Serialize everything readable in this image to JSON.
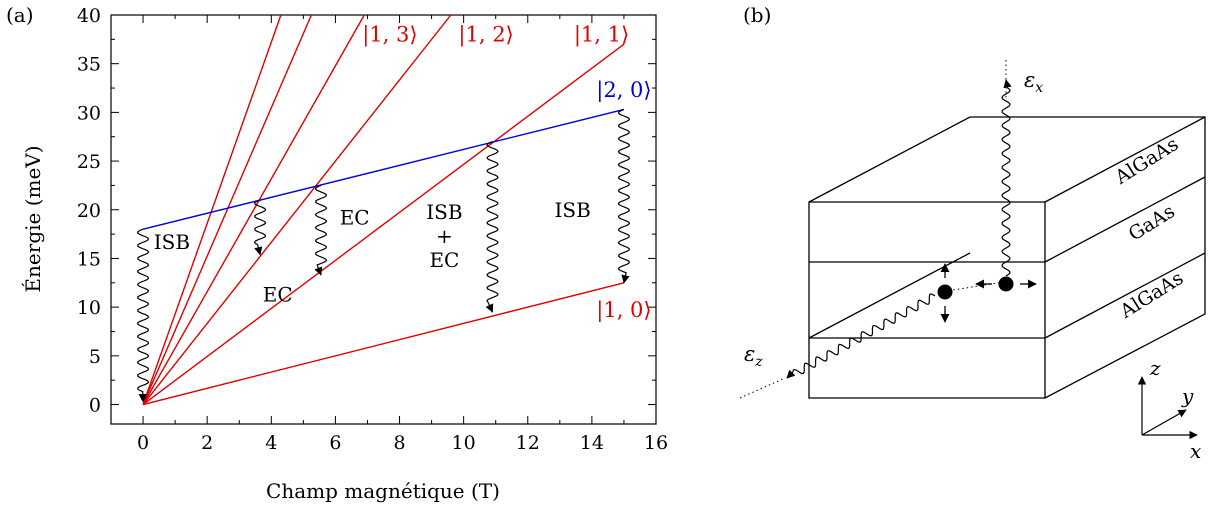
{
  "panel_a": {
    "label": "(a)",
    "chart_data": {
      "type": "line",
      "xlabel": "Champ magnétique (T)",
      "ylabel": "Énergie (meV)",
      "xlim": [
        -1,
        16
      ],
      "ylim": [
        -2,
        40
      ],
      "xticks": [
        0,
        2,
        4,
        6,
        8,
        10,
        12,
        14,
        16
      ],
      "yticks": [
        0,
        5,
        10,
        15,
        20,
        25,
        30,
        35,
        40
      ],
      "grid": false,
      "colors": {
        "landau": "#e00000",
        "excited": "#0000dd"
      },
      "series": [
        {
          "name": "|1, 0⟩",
          "color": "#e00000",
          "x": [
            0,
            15
          ],
          "y": [
            0,
            12.5
          ]
        },
        {
          "name": "|1, 1⟩",
          "color": "#e00000",
          "x": [
            0,
            15
          ],
          "y": [
            0,
            37
          ]
        },
        {
          "name": "|1, 2⟩",
          "color": "#e00000",
          "x": [
            0,
            9.6
          ],
          "y": [
            0,
            40
          ]
        },
        {
          "name": "|1, 3⟩",
          "color": "#e00000",
          "x": [
            0,
            6.9
          ],
          "y": [
            0,
            40
          ]
        },
        {
          "name": "",
          "color": "#e00000",
          "x": [
            0,
            5.25
          ],
          "y": [
            0,
            40
          ]
        },
        {
          "name": "",
          "color": "#e00000",
          "x": [
            0,
            4.3
          ],
          "y": [
            0,
            40
          ]
        },
        {
          "name": "|2, 0⟩",
          "color": "#0000dd",
          "x": [
            0,
            15
          ],
          "y": [
            18,
            30.3
          ]
        }
      ],
      "state_labels": [
        {
          "text": "|1, 3⟩",
          "color": "#e00000",
          "x": 7.7,
          "y": 37.3
        },
        {
          "text": "|1, 2⟩",
          "color": "#e00000",
          "x": 10.7,
          "y": 37.3
        },
        {
          "text": "|1, 1⟩",
          "color": "#e00000",
          "x": 14.3,
          "y": 37.3
        },
        {
          "text": "|2, 0⟩",
          "color": "#0000dd",
          "x": 15.0,
          "y": 31.6
        },
        {
          "text": "|1, 0⟩",
          "color": "#e00000",
          "x": 15.0,
          "y": 9.0
        }
      ],
      "transitions": [
        {
          "x": 0,
          "y_from": 18,
          "y_to": 0.3,
          "label": "ISB",
          "label_lines": [
            "ISB"
          ],
          "label_x": 0.9,
          "label_y": 16.7
        },
        {
          "x": 3.65,
          "y_from": 21,
          "y_to": 15.4,
          "label": "EC",
          "label_lines": [
            "EC"
          ],
          "label_x": 4.2,
          "label_y": 11.3
        },
        {
          "x": 5.55,
          "y_from": 22.5,
          "y_to": 13.3,
          "label": "EC",
          "label_lines": [
            "EC"
          ],
          "label_x": 6.6,
          "label_y": 19.2
        },
        {
          "x": 10.9,
          "y_from": 27,
          "y_to": 9.5,
          "label": "ISB + EC",
          "label_lines": [
            "ISB",
            "+",
            "EC"
          ],
          "label_x": 9.4,
          "label_y": 17.3
        },
        {
          "x": 15,
          "y_from": 30.3,
          "y_to": 12.5,
          "label": "ISB",
          "label_lines": [
            "ISB"
          ],
          "label_x": 13.4,
          "label_y": 20.0
        }
      ]
    }
  },
  "panel_b": {
    "label": "(b)",
    "layers": [
      "AlGaAs",
      "GaAs",
      "AlGaAs"
    ],
    "field_labels": {
      "ex_sym": "ε",
      "ex_sub": "x",
      "ez_sym": "ε",
      "ez_sub": "z"
    },
    "axes": {
      "z": "z",
      "y": "y",
      "x": "x"
    }
  }
}
